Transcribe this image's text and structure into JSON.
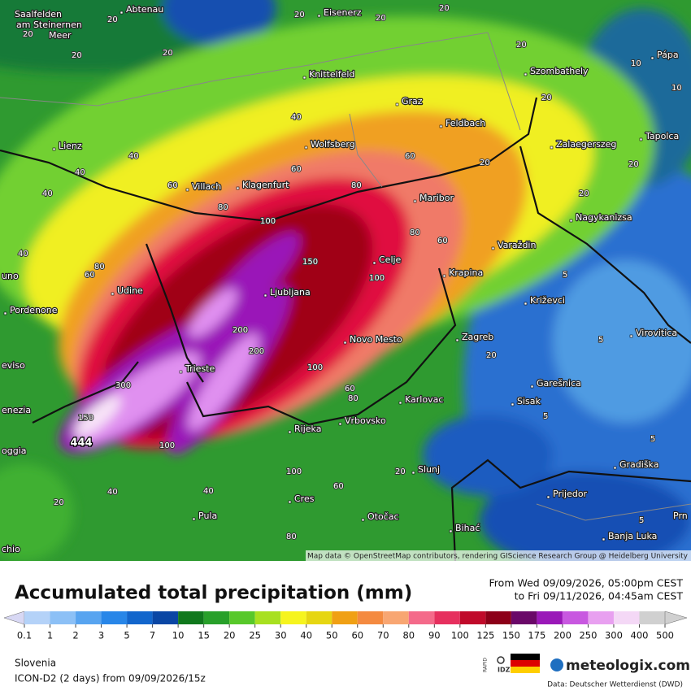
{
  "map": {
    "cities": [
      "Saalfelden",
      "am Steinernen",
      "Meer",
      "Abtenau",
      "Eisenerz",
      "Knittelfeld",
      "Graz",
      "Feldbach",
      "Szombathely",
      "Pápa",
      "Lienz",
      "Wolfsberg",
      "Zalaegerszeg",
      "Tapolca",
      "Villach",
      "Klagenfurt",
      "Maribor",
      "Nagykanizsa",
      "Varaždin",
      "Celje",
      "Krapina",
      "Udine",
      "Ljubljana",
      "Križevci",
      "Pordenone",
      "uno",
      "Novo Mesto",
      "Zagreb",
      "Virovitica",
      "eviso",
      "Trieste",
      "Garešnica",
      "Karlovac",
      "Sisak",
      "enezia",
      "Rijeka",
      "Vrbovsko",
      "oggia",
      "Slunj",
      "Gradiška",
      "Prijedor",
      "Cres",
      "Otočac",
      "Pula",
      "Bihać",
      "Banja Luka",
      "Prn",
      "chio"
    ],
    "contour_labels": [
      "20",
      "20",
      "20",
      "20",
      "20",
      "20",
      "20",
      "20",
      "20",
      "20",
      "20",
      "20",
      "20",
      "20",
      "40",
      "40",
      "40",
      "40",
      "40",
      "40",
      "60",
      "60",
      "60",
      "60",
      "60",
      "60",
      "80",
      "80",
      "80",
      "80",
      "80",
      "100",
      "100",
      "100",
      "100",
      "150",
      "200",
      "200",
      "300",
      "150",
      "5",
      "5",
      "5",
      "5",
      "5",
      "10",
      "10",
      "60",
      "80",
      "100",
      "40",
      "20"
    ],
    "max_value": "444",
    "attribution": "Map data © OpenStreetMap contributors, rendering GIScience Research Group @ Heidelberg University"
  },
  "legend": {
    "title": "Accumulated total precipitation (mm)",
    "period": [
      "From Wed 09/09/2026, 05:00pm CEST",
      "to Fri 09/11/2026, 04:45am CEST"
    ],
    "levels": [
      0.1,
      1,
      2,
      3,
      5,
      7,
      10,
      15,
      20,
      25,
      30,
      40,
      50,
      60,
      70,
      80,
      90,
      100,
      125,
      150,
      175,
      200,
      250,
      300,
      400,
      500
    ],
    "region": "Slovenia",
    "model": "ICON-D2 (2 days) from 09/09/2026/15z",
    "rapid": "RAPID",
    "idz": "IDZ",
    "brand": "meteologix.com",
    "source": "Data: Deutscher Wetterdienst (DWD)"
  }
}
